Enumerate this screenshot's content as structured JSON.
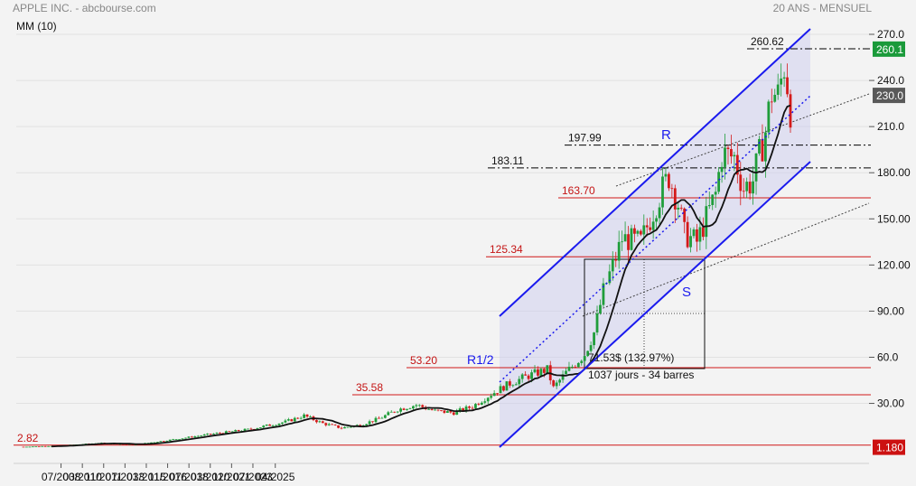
{
  "header": {
    "title": "APPLE INC. - abcbourse.com",
    "period": "20 ANS - MENSUEL",
    "indicator": "MM (10)"
  },
  "chart_data": {
    "type": "candlestick",
    "ylim": [
      0,
      270
    ],
    "y_ticks": [
      30,
      60,
      90,
      120,
      150,
      180,
      210,
      240,
      270
    ],
    "y_tick_labels": [
      "30.00",
      "60.0",
      "90.00",
      "120.00",
      "150.00",
      "180.00",
      "210.0",
      "240.0",
      "270.0"
    ],
    "x_tick_labels": [
      "07/2008",
      "03/2010",
      "11/2011",
      "07/2013",
      "03/2015",
      "11/2016",
      "07/2018",
      "03/2020",
      "11/2021",
      "07/2023",
      "04/2025"
    ],
    "price_tags": [
      {
        "value": 260.1,
        "label": "260.1",
        "color": "#1a9a3a"
      },
      {
        "value": 230.0,
        "label": "230.0",
        "color": "#595959"
      },
      {
        "value": 1.18,
        "label": "1.180",
        "color": "#cc1111"
      }
    ],
    "levels": [
      {
        "value": 2.82,
        "label": "2.82",
        "style": "solid",
        "color": "#d01818"
      },
      {
        "value": 35.58,
        "label": "35.58",
        "style": "solid",
        "color": "#d01818"
      },
      {
        "value": 53.2,
        "label": "53.20",
        "style": "solid",
        "color": "#d01818"
      },
      {
        "value": 125.34,
        "label": "125.34",
        "style": "solid",
        "color": "#d01818"
      },
      {
        "value": 163.7,
        "label": "163.70",
        "style": "solid",
        "color": "#d01818"
      },
      {
        "value": 183.11,
        "label": "183.11",
        "style": "dashdot",
        "color": "#000000"
      },
      {
        "value": 197.99,
        "label": "197.99",
        "style": "dashdot",
        "color": "#000000"
      },
      {
        "value": 260.62,
        "label": "260.62",
        "style": "dashdot",
        "color": "#000000"
      }
    ],
    "channel_labels": {
      "resistance": "R",
      "support": "S",
      "midline": "R1/2"
    },
    "measure": {
      "change": "71.53$ (132.97%)",
      "duration": "1037 jours - 34 barres"
    },
    "colors": {
      "up": "#1f9d3a",
      "down": "#d41a1a",
      "channel": "#1a1aee",
      "ma": "#111111"
    }
  }
}
